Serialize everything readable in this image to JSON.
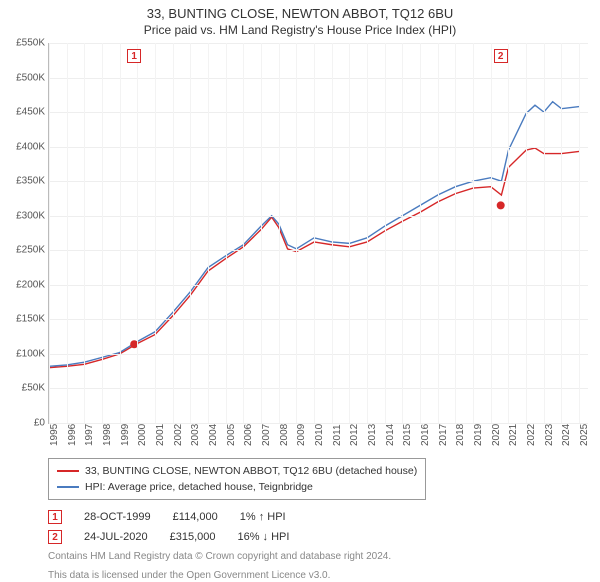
{
  "title": "33, BUNTING CLOSE, NEWTON ABBOT, TQ12 6BU",
  "subtitle": "Price paid vs. HM Land Registry's House Price Index (HPI)",
  "chart": {
    "type": "line",
    "background_color": "#ffffff",
    "grid_color": "#eeeeee",
    "axis_color": "#bbbbbb",
    "ytick_label_color": "#555555",
    "xtick_label_color": "#555555",
    "ylabel_fontsize": 10,
    "xlabel_fontsize": 10,
    "xlim": [
      1995,
      2025.5
    ],
    "ylim": [
      0,
      550000
    ],
    "yticks": [
      0,
      50000,
      100000,
      150000,
      200000,
      250000,
      300000,
      350000,
      400000,
      450000,
      500000,
      550000
    ],
    "ytick_labels": [
      "£0",
      "£50K",
      "£100K",
      "£150K",
      "£200K",
      "£250K",
      "£300K",
      "£350K",
      "£400K",
      "£450K",
      "£500K",
      "£550K"
    ],
    "xticks": [
      1995,
      1996,
      1997,
      1998,
      1999,
      2000,
      2001,
      2002,
      2003,
      2004,
      2005,
      2006,
      2007,
      2008,
      2009,
      2010,
      2011,
      2012,
      2013,
      2014,
      2015,
      2016,
      2017,
      2018,
      2019,
      2020,
      2021,
      2022,
      2023,
      2024,
      2025
    ],
    "series": [
      {
        "name": "33, BUNTING CLOSE, NEWTON ABBOT, TQ12 6BU (detached house)",
        "color": "#d62728",
        "line_width": 1.4,
        "data": [
          [
            1995,
            80000
          ],
          [
            1996,
            82000
          ],
          [
            1997,
            85000
          ],
          [
            1998,
            92000
          ],
          [
            1999,
            100000
          ],
          [
            1999.8,
            112000
          ],
          [
            2000,
            115000
          ],
          [
            2001,
            128000
          ],
          [
            2002,
            155000
          ],
          [
            2003,
            185000
          ],
          [
            2004,
            220000
          ],
          [
            2005,
            238000
          ],
          [
            2006,
            255000
          ],
          [
            2007,
            280000
          ],
          [
            2007.6,
            298000
          ],
          [
            2008,
            283000
          ],
          [
            2008.5,
            252000
          ],
          [
            2009,
            248000
          ],
          [
            2010,
            262000
          ],
          [
            2011,
            258000
          ],
          [
            2012,
            255000
          ],
          [
            2013,
            262000
          ],
          [
            2014,
            278000
          ],
          [
            2015,
            292000
          ],
          [
            2016,
            305000
          ],
          [
            2017,
            320000
          ],
          [
            2018,
            332000
          ],
          [
            2019,
            340000
          ],
          [
            2020,
            342000
          ],
          [
            2020.6,
            330000
          ],
          [
            2021,
            370000
          ],
          [
            2022,
            395000
          ],
          [
            2022.5,
            398000
          ],
          [
            2023,
            390000
          ],
          [
            2024,
            390000
          ],
          [
            2025,
            393000
          ]
        ]
      },
      {
        "name": "HPI: Average price, detached house, Teignbridge",
        "color": "#4a7bbf",
        "line_width": 1.4,
        "data": [
          [
            1995,
            82000
          ],
          [
            1996,
            84000
          ],
          [
            1997,
            88000
          ],
          [
            1998,
            95000
          ],
          [
            1999,
            102000
          ],
          [
            2000,
            118000
          ],
          [
            2001,
            132000
          ],
          [
            2002,
            160000
          ],
          [
            2003,
            190000
          ],
          [
            2004,
            225000
          ],
          [
            2005,
            242000
          ],
          [
            2006,
            258000
          ],
          [
            2007,
            285000
          ],
          [
            2007.6,
            300000
          ],
          [
            2008,
            288000
          ],
          [
            2008.5,
            258000
          ],
          [
            2009,
            252000
          ],
          [
            2010,
            268000
          ],
          [
            2011,
            262000
          ],
          [
            2012,
            260000
          ],
          [
            2013,
            268000
          ],
          [
            2014,
            285000
          ],
          [
            2015,
            300000
          ],
          [
            2016,
            315000
          ],
          [
            2017,
            330000
          ],
          [
            2018,
            342000
          ],
          [
            2019,
            350000
          ],
          [
            2020,
            355000
          ],
          [
            2020.6,
            350000
          ],
          [
            2021,
            395000
          ],
          [
            2022,
            448000
          ],
          [
            2022.5,
            460000
          ],
          [
            2023,
            450000
          ],
          [
            2023.5,
            465000
          ],
          [
            2024,
            455000
          ],
          [
            2025,
            458000
          ]
        ]
      }
    ],
    "sale_markers": [
      {
        "num": "1",
        "x": 1999.82,
        "y": 114000,
        "color": "#d62728"
      },
      {
        "num": "2",
        "x": 2020.56,
        "y": 315000,
        "color": "#d62728"
      }
    ]
  },
  "legend": {
    "border_color": "#999999",
    "fontsize": 10.5,
    "items": [
      {
        "color": "#d62728",
        "label": "33, BUNTING CLOSE, NEWTON ABBOT, TQ12 6BU (detached house)"
      },
      {
        "color": "#4a7bbf",
        "label": "HPI: Average price, detached house, Teignbridge"
      }
    ]
  },
  "sales": [
    {
      "num": "1",
      "color": "#d62728",
      "date": "28-OCT-1999",
      "price": "£114,000",
      "delta": "1% ↑ HPI"
    },
    {
      "num": "2",
      "color": "#d62728",
      "date": "24-JUL-2020",
      "price": "£315,000",
      "delta": "16% ↓ HPI"
    }
  ],
  "footnote1": "Contains HM Land Registry data © Crown copyright and database right 2024.",
  "footnote2": "This data is licensed under the Open Government Licence v3.0."
}
